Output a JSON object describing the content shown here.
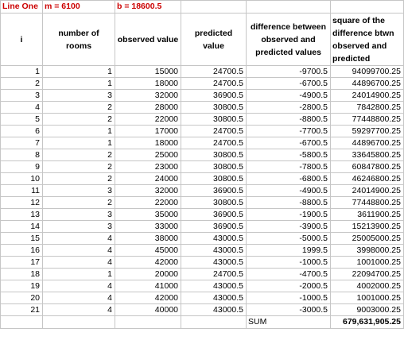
{
  "params": {
    "line_label": "Line One",
    "m_label": "m = 6100",
    "b_label": "b = 18600.5"
  },
  "headers": {
    "i": "i",
    "rooms": "number of rooms",
    "observed": "observed value",
    "predicted": "predicted value",
    "difference": "difference between observed and predicted values",
    "square": "square of the difference btwn observed and predicted"
  },
  "rows": [
    {
      "i": "1",
      "rooms": "1",
      "observed": "15000",
      "predicted": "24700.5",
      "diff": "-9700.5",
      "sq": "94099700.25"
    },
    {
      "i": "2",
      "rooms": "1",
      "observed": "18000",
      "predicted": "24700.5",
      "diff": "-6700.5",
      "sq": "44896700.25"
    },
    {
      "i": "3",
      "rooms": "3",
      "observed": "32000",
      "predicted": "36900.5",
      "diff": "-4900.5",
      "sq": "24014900.25"
    },
    {
      "i": "4",
      "rooms": "2",
      "observed": "28000",
      "predicted": "30800.5",
      "diff": "-2800.5",
      "sq": "7842800.25"
    },
    {
      "i": "5",
      "rooms": "2",
      "observed": "22000",
      "predicted": "30800.5",
      "diff": "-8800.5",
      "sq": "77448800.25"
    },
    {
      "i": "6",
      "rooms": "1",
      "observed": "17000",
      "predicted": "24700.5",
      "diff": "-7700.5",
      "sq": "59297700.25"
    },
    {
      "i": "7",
      "rooms": "1",
      "observed": "18000",
      "predicted": "24700.5",
      "diff": "-6700.5",
      "sq": "44896700.25"
    },
    {
      "i": "8",
      "rooms": "2",
      "observed": "25000",
      "predicted": "30800.5",
      "diff": "-5800.5",
      "sq": "33645800.25"
    },
    {
      "i": "9",
      "rooms": "2",
      "observed": "23000",
      "predicted": "30800.5",
      "diff": "-7800.5",
      "sq": "60847800.25"
    },
    {
      "i": "10",
      "rooms": "2",
      "observed": "24000",
      "predicted": "30800.5",
      "diff": "-6800.5",
      "sq": "46246800.25"
    },
    {
      "i": "11",
      "rooms": "3",
      "observed": "32000",
      "predicted": "36900.5",
      "diff": "-4900.5",
      "sq": "24014900.25"
    },
    {
      "i": "12",
      "rooms": "2",
      "observed": "22000",
      "predicted": "30800.5",
      "diff": "-8800.5",
      "sq": "77448800.25"
    },
    {
      "i": "13",
      "rooms": "3",
      "observed": "35000",
      "predicted": "36900.5",
      "diff": "-1900.5",
      "sq": "3611900.25"
    },
    {
      "i": "14",
      "rooms": "3",
      "observed": "33000",
      "predicted": "36900.5",
      "diff": "-3900.5",
      "sq": "15213900.25"
    },
    {
      "i": "15",
      "rooms": "4",
      "observed": "38000",
      "predicted": "43000.5",
      "diff": "-5000.5",
      "sq": "25005000.25"
    },
    {
      "i": "16",
      "rooms": "4",
      "observed": "45000",
      "predicted": "43000.5",
      "diff": "1999.5",
      "sq": "3998000.25"
    },
    {
      "i": "17",
      "rooms": "4",
      "observed": "42000",
      "predicted": "43000.5",
      "diff": "-1000.5",
      "sq": "1001000.25"
    },
    {
      "i": "18",
      "rooms": "1",
      "observed": "20000",
      "predicted": "24700.5",
      "diff": "-4700.5",
      "sq": "22094700.25"
    },
    {
      "i": "19",
      "rooms": "4",
      "observed": "41000",
      "predicted": "43000.5",
      "diff": "-2000.5",
      "sq": "4002000.25"
    },
    {
      "i": "20",
      "rooms": "4",
      "observed": "42000",
      "predicted": "43000.5",
      "diff": "-1000.5",
      "sq": "1001000.25"
    },
    {
      "i": "21",
      "rooms": "4",
      "observed": "40000",
      "predicted": "43000.5",
      "diff": "-3000.5",
      "sq": "9003000.25"
    }
  ],
  "footer": {
    "sum_label": "SUM",
    "sum_value": "679,631,905.25"
  },
  "colors": {
    "param_text": "#cc0000",
    "gridline": "#c6c6c6"
  }
}
